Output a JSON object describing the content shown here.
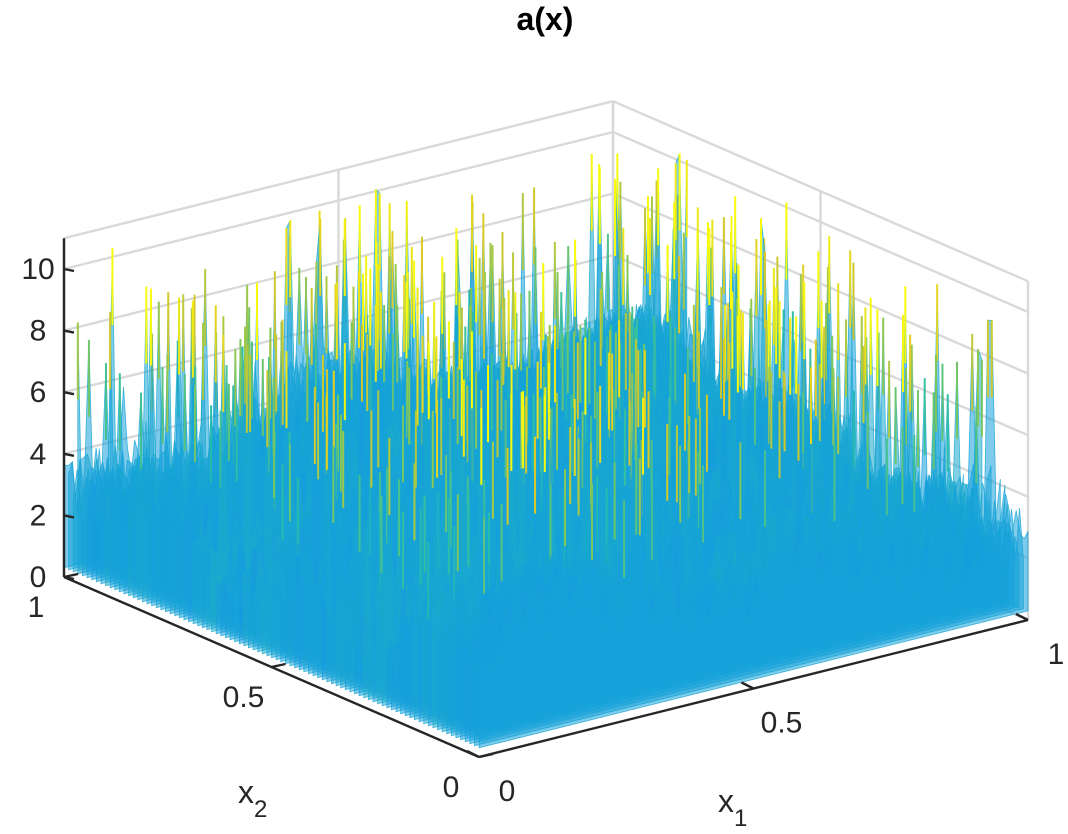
{
  "chart_data": {
    "type": "surface",
    "title": "a(x)",
    "xlabel": {
      "base": "x",
      "sub": "1"
    },
    "ylabel": {
      "base": "x",
      "sub": "2"
    },
    "zlabel": "",
    "xlim": [
      0,
      1
    ],
    "ylim": [
      0,
      1
    ],
    "zlim": [
      0,
      11
    ],
    "x_ticks": [
      "0",
      "0.5",
      "1"
    ],
    "y_ticks": [
      "0",
      "0.5",
      "1"
    ],
    "z_ticks": [
      "0",
      "2",
      "4",
      "6",
      "8",
      "10"
    ],
    "grid": true,
    "box": true,
    "colormap": "parula",
    "surface_summary": {
      "description_values": {
        "z_min": 0.4,
        "z_typical_low": 1.5,
        "z_typical_high": 5,
        "z_max": 10.5
      }
    },
    "colors": {
      "low": "#3e26a8",
      "mid_low": "#2e58d9",
      "mid": "#1aa3d6",
      "mid_high": "#30b9a0",
      "high": "#c4c63a",
      "peak": "#f9fb0e",
      "grid": "#d9d9d9",
      "axis": "#262626"
    }
  }
}
